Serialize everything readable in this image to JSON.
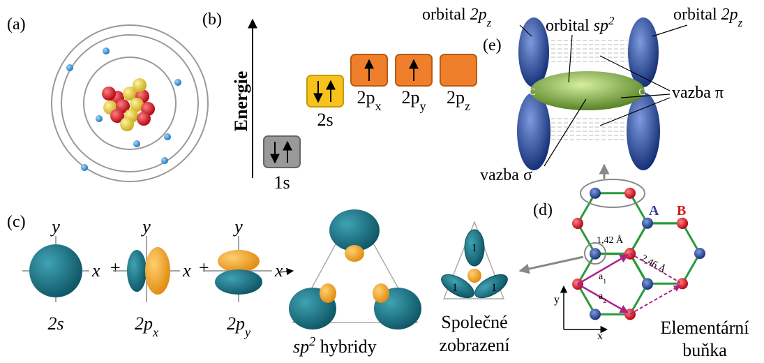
{
  "a": {
    "label": "(a)"
  },
  "b": {
    "label": "(b)",
    "axis": "Energie",
    "levels": [
      {
        "main": "1s"
      },
      {
        "main": "2s"
      },
      {
        "main": "2p",
        "sub": "x"
      },
      {
        "main": "2p",
        "sub": "y"
      },
      {
        "main": "2p",
        "sub": "z"
      }
    ]
  },
  "c": {
    "label": "(c)",
    "axis_y": "y",
    "axis_x": "x",
    "plus": "+",
    "orbitals": [
      {
        "main": "2s"
      },
      {
        "main": "2p",
        "sub": "x"
      },
      {
        "main": "2p",
        "sub": "y"
      }
    ],
    "hybrid": {
      "main": "sp",
      "sup": "2",
      "rest": " hybridy"
    },
    "common": [
      "Společné",
      "zobrazení"
    ],
    "lobe_labels": [
      "1",
      "1",
      "1"
    ]
  },
  "d": {
    "label": "(d)",
    "sublattices": [
      "A",
      "B"
    ],
    "bond": "1,42 Å",
    "lattice": "2,46 Å",
    "vectors": [
      {
        "main": "a",
        "sub": "1"
      },
      {
        "main": "a",
        "sub": "2"
      }
    ],
    "axis_x": "x",
    "axis_y": "y",
    "cell": [
      "Elementární",
      "buňka"
    ]
  },
  "e": {
    "label": "(e)",
    "pz_left": {
      "pre": "orbital ",
      "main": "2p",
      "sub": "z"
    },
    "pz_right": {
      "pre": "orbital ",
      "main": "2p",
      "sub": "z"
    },
    "sp2": {
      "pre": "orbital ",
      "main": "sp",
      "sup": "2"
    },
    "pi": "vazba π",
    "sigma": "vazba σ",
    "atoms": [
      "C",
      "C"
    ]
  }
}
